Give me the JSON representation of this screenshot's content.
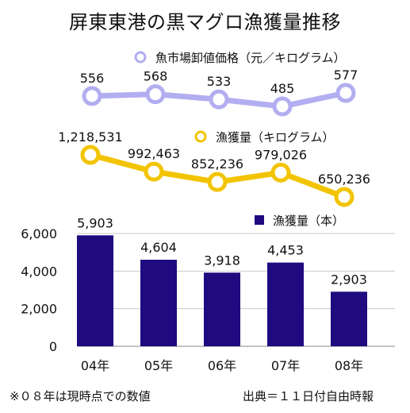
{
  "title": "屏東東港の黒マグロ漁獲量推移",
  "footnote": "※０８年は現時点での数値",
  "source": "出典＝１１日付自由時報",
  "chart_data": [
    {
      "type": "line",
      "categories": [
        "04年",
        "05年",
        "06年",
        "07年",
        "08年"
      ],
      "series": [
        {
          "name": "魚市場卸値価格（元／キログラム）",
          "values": [
            556,
            568,
            533,
            485,
            577
          ],
          "labels": [
            "556",
            "568",
            "533",
            "485",
            "577"
          ],
          "color": "#b3aef0"
        }
      ]
    },
    {
      "type": "line",
      "categories": [
        "04年",
        "05年",
        "06年",
        "07年",
        "08年"
      ],
      "series": [
        {
          "name": "漁獲量（キログラム）",
          "values": [
            1218531,
            992463,
            852236,
            979026,
            650236
          ],
          "labels": [
            "1,218,531",
            "992,463",
            "852,236",
            "979,026",
            "650,236"
          ],
          "color": "#f2c400"
        }
      ]
    },
    {
      "type": "bar",
      "categories": [
        "04年",
        "05年",
        "06年",
        "07年",
        "08年"
      ],
      "series": [
        {
          "name": "漁獲量（本）",
          "values": [
            5903,
            4604,
            3918,
            4453,
            2903
          ],
          "labels": [
            "5,903",
            "4,604",
            "3,918",
            "4,453",
            "2,903"
          ],
          "color": "#1f0a80"
        }
      ],
      "ylim": [
        0,
        6000
      ],
      "yticks": [
        "0",
        "2,000",
        "4,000",
        "6,000"
      ],
      "grid": true
    }
  ]
}
